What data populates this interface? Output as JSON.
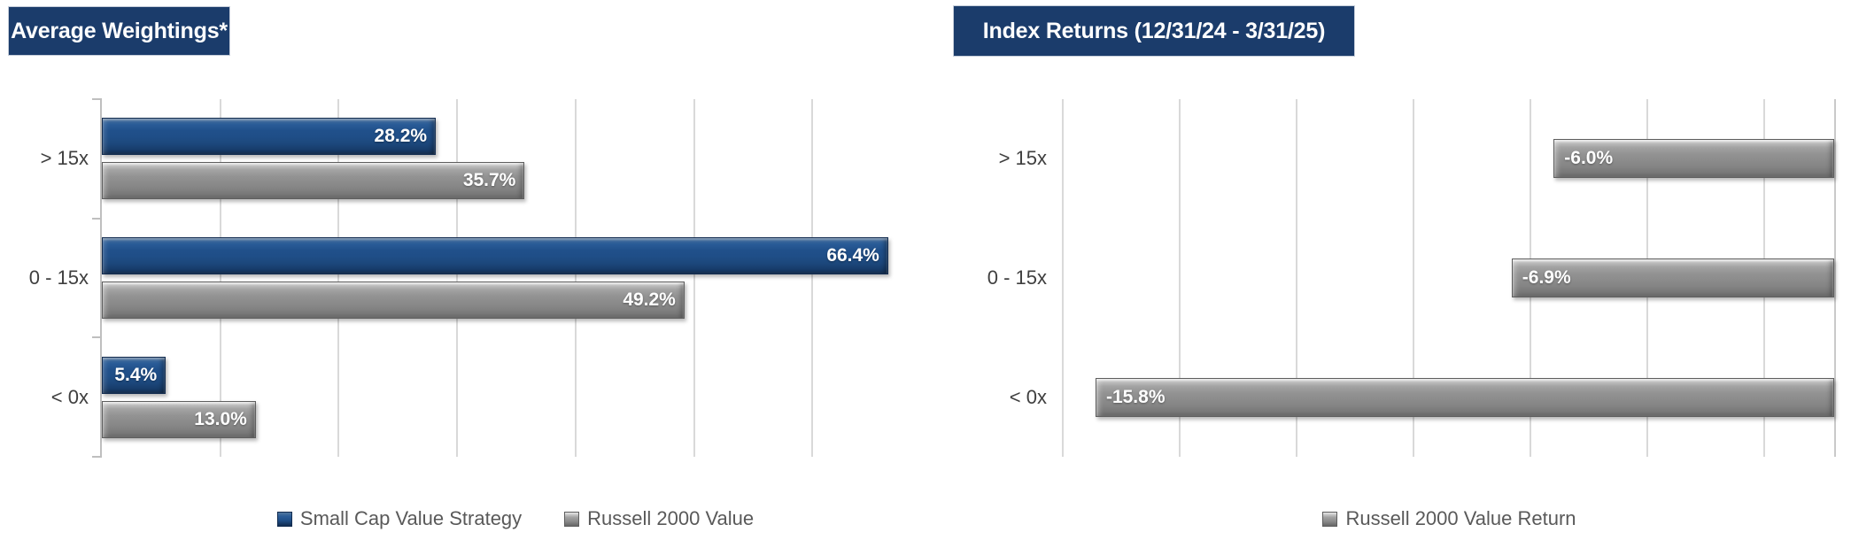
{
  "chart_data": [
    {
      "type": "bar",
      "orientation": "horizontal",
      "title": "Average Weightings*",
      "categories": [
        "> 15x",
        "0 - 15x",
        "< 0x"
      ],
      "series": [
        {
          "name": "Small Cap Value Strategy",
          "color_key": "blue",
          "values": [
            28.2,
            66.4,
            5.4
          ],
          "labels": [
            "28.2%",
            "66.4%",
            "5.4%"
          ]
        },
        {
          "name": "Russell 2000 Value",
          "color_key": "gray",
          "values": [
            35.7,
            49.2,
            13.0
          ],
          "labels": [
            "35.7%",
            "49.2%",
            "13.0%"
          ]
        }
      ],
      "axis": {
        "min": 0,
        "max": 70,
        "gridline_step": 10,
        "zero_at": "left"
      },
      "grid": true,
      "legend_position": "bottom"
    },
    {
      "type": "bar",
      "orientation": "horizontal",
      "title": "Index Returns (12/31/24 - 3/31/25)",
      "categories": [
        "> 15x",
        "0 - 15x",
        "< 0x"
      ],
      "series": [
        {
          "name": "Russell 2000 Value Return",
          "color_key": "gray",
          "values": [
            -6.0,
            -6.9,
            -15.8
          ],
          "labels": [
            "-6.0%",
            "-6.9%",
            "-15.8%"
          ]
        }
      ],
      "axis": {
        "min": -16.5,
        "max": 0,
        "gridline_step": 2.5,
        "zero_at": "right"
      },
      "grid": true,
      "legend_position": "bottom"
    }
  ],
  "colors": {
    "title_bg": "#1b3c6b",
    "title_text": "#ffffff",
    "series_blue": "#1f4e87",
    "series_gray": "#8c8c8c",
    "gridline": "#d9d9d9",
    "axis_line": "#bfbfbf",
    "category_text": "#3f3f3f",
    "legend_text": "#595959",
    "bar_label_text": "#ffffff"
  }
}
